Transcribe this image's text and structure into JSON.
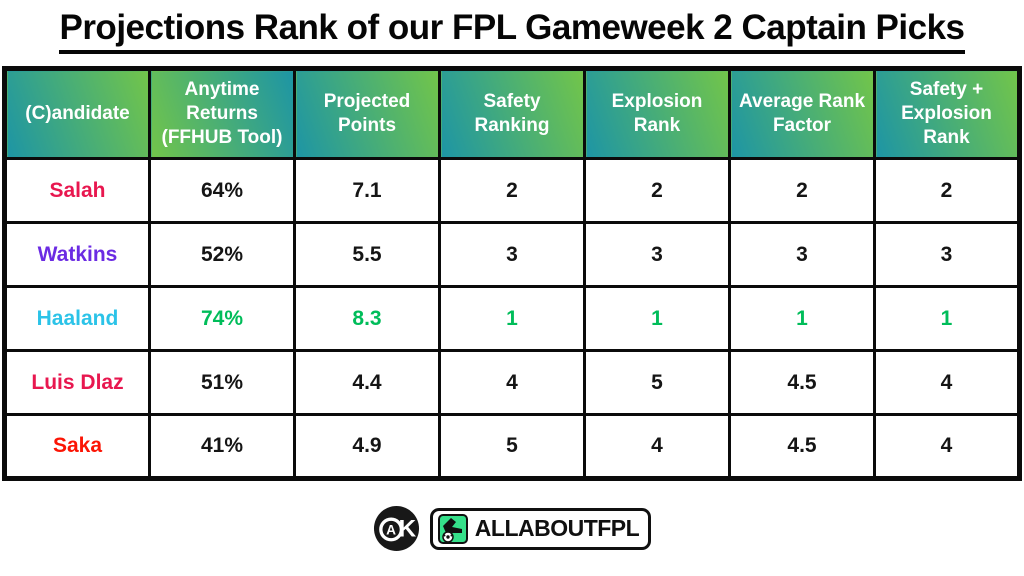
{
  "title": "Projections Rank of our FPL Gameweek 2 Captain Picks",
  "chart_data": {
    "type": "table",
    "title": "Projections Rank of our FPL Gameweek 2 Captain Picks",
    "columns": [
      "(C)andidate",
      "Anytime Returns (FFHUB Tool)",
      "Projected Points",
      "Safety Ranking",
      "Explosion Rank",
      "Average Rank Factor",
      "Safety + Explosion Rank"
    ],
    "rows": [
      {
        "cells": [
          "Salah",
          "64%",
          "7.1",
          "2",
          "2",
          "2",
          "2"
        ],
        "name_color": "#e8174f",
        "value_color": "#151515"
      },
      {
        "cells": [
          "Watkins",
          "52%",
          "5.5",
          "3",
          "3",
          "3",
          "3"
        ],
        "name_color": "#6b2be3",
        "value_color": "#151515"
      },
      {
        "cells": [
          "Haaland",
          "74%",
          "8.3",
          "1",
          "1",
          "1",
          "1"
        ],
        "name_color": "#2bc3e8",
        "value_color": "#00bd5a"
      },
      {
        "cells": [
          "Luis Dlaz",
          "51%",
          "4.4",
          "4",
          "5",
          "4.5",
          "4"
        ],
        "name_color": "#e8174f",
        "value_color": "#151515"
      },
      {
        "cells": [
          "Saka",
          "41%",
          "4.9",
          "5",
          "4",
          "4.5",
          "4"
        ],
        "name_color": "#fb1505",
        "value_color": "#151515"
      }
    ]
  },
  "colors": {
    "header_teal": "#1d95a5",
    "header_green": "#72c54a",
    "highlight_green": "#00bd5a",
    "border_black": "#0b0b0b"
  },
  "footer": {
    "monogram": "AK",
    "brand": "ALLABOUTFPL"
  }
}
